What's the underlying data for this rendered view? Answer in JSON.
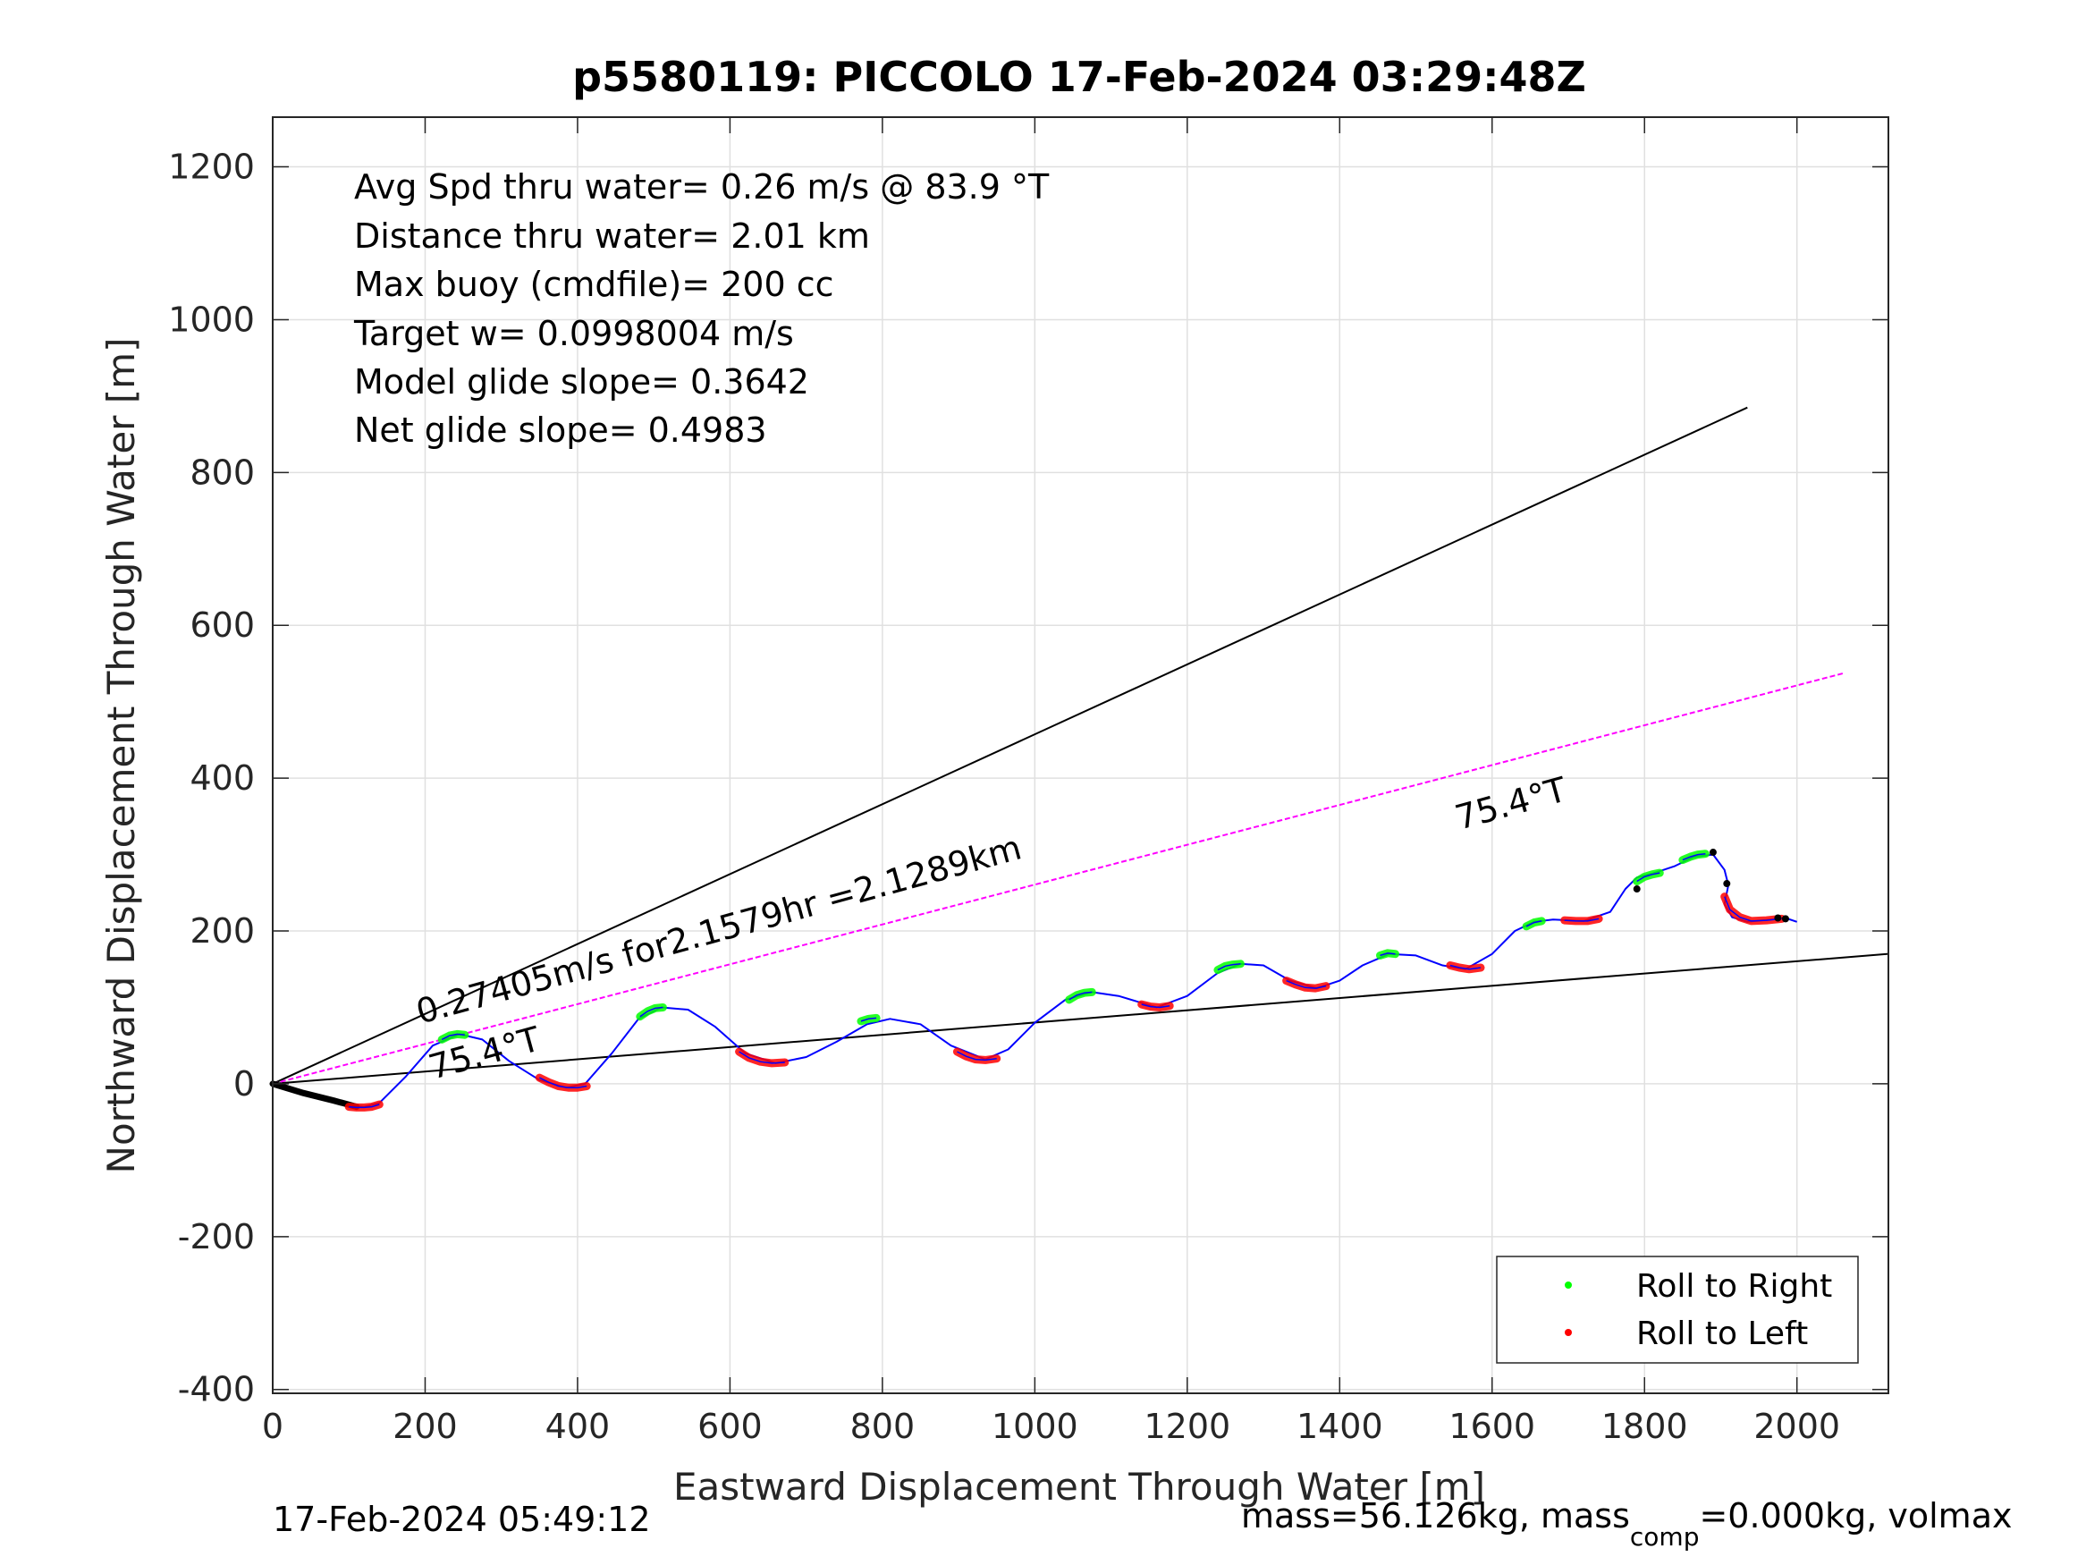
{
  "chart_data": {
    "type": "line",
    "title": "p5580119: PICCOLO 17-Feb-2024 03:29:48Z",
    "xlabel": "Eastward Displacement Through Water [m]",
    "ylabel": "Northward Displacement Through Water [m]",
    "xlim": [
      0,
      2120
    ],
    "ylim": [
      -405,
      1265
    ],
    "xticks": [
      0,
      200,
      400,
      600,
      800,
      1000,
      1200,
      1400,
      1600,
      1800,
      2000
    ],
    "yticks": [
      -400,
      -200,
      0,
      200,
      400,
      600,
      800,
      1000,
      1200
    ],
    "xticklabels": [
      "0",
      "200",
      "400",
      "600",
      "800",
      "1000",
      "1200",
      "1400",
      "1600",
      "1800",
      "2000"
    ],
    "yticklabels": [
      "-400",
      "-200",
      "0",
      "200",
      "400",
      "600",
      "800",
      "1000",
      "1200"
    ],
    "grid": true,
    "legend_position": "bottom-right",
    "info_lines": [
      "Avg Spd thru water=  0.26 m/s @  83.9 °T",
      "Distance thru water=  2.01 km",
      "Max buoy (cmdfile)= 200 cc",
      "Target w= 0.0998004 m/s",
      "Model glide slope= 0.3642",
      "Net glide slope= 0.4983"
    ],
    "annotations": {
      "speed_line": "0.27405m/s for2.1579hr =2.1289km",
      "heading_upper": "75.4°T",
      "heading_lower": "75.4°T"
    },
    "footer_left": "17-Feb-2024 05:49:12",
    "footer_right_prefix": "mass=56.126kg, mass",
    "footer_right_sub": "comp",
    "footer_right_suffix": "=0.000kg, volmax",
    "reference_lines": [
      {
        "color": "#000000",
        "x": [
          0,
          1935
        ],
        "y": [
          0,
          885
        ]
      },
      {
        "color": "#000000",
        "x": [
          0,
          2120
        ],
        "y": [
          0,
          170
        ]
      },
      {
        "color": "#ff00ff",
        "x": [
          0,
          2060
        ],
        "y": [
          0,
          537
        ],
        "dashed": true
      }
    ],
    "track": {
      "color": "#0000ff",
      "x": [
        0,
        50,
        100,
        120,
        140,
        175,
        210,
        245,
        275,
        310,
        350,
        385,
        410,
        445,
        480,
        510,
        545,
        580,
        620,
        660,
        700,
        740,
        780,
        810,
        850,
        890,
        935,
        965,
        1000,
        1040,
        1075,
        1110,
        1160,
        1200,
        1240,
        1270,
        1300,
        1335,
        1370,
        1400,
        1430,
        1465,
        1500,
        1535,
        1565,
        1600,
        1630,
        1655,
        1680,
        1720,
        1755,
        1775,
        1790,
        1810,
        1840,
        1865,
        1890,
        1905,
        1910,
        1905,
        1915,
        1935,
        1965,
        1985,
        2000
      ],
      "y": [
        0,
        -15,
        -28,
        -30,
        -25,
        10,
        50,
        65,
        58,
        30,
        5,
        -5,
        0,
        40,
        85,
        100,
        97,
        75,
        40,
        27,
        35,
        55,
        78,
        85,
        78,
        50,
        32,
        45,
        80,
        110,
        120,
        115,
        100,
        115,
        145,
        157,
        155,
        135,
        125,
        135,
        155,
        170,
        168,
        155,
        150,
        170,
        200,
        212,
        215,
        213,
        225,
        255,
        270,
        275,
        285,
        297,
        300,
        280,
        260,
        235,
        218,
        212,
        215,
        217,
        212
      ]
    },
    "dive_segment": {
      "x": [
        0,
        40,
        80,
        110
      ],
      "y": [
        0,
        -12,
        -22,
        -30
      ]
    },
    "markers": [
      {
        "x": 1790,
        "y": 255
      },
      {
        "x": 1890,
        "y": 303
      },
      {
        "x": 1908,
        "y": 262
      },
      {
        "x": 1975,
        "y": 217
      },
      {
        "x": 1985,
        "y": 216
      }
    ],
    "series": [
      {
        "name": "Roll to Right",
        "color": "#00ff00",
        "segments": [
          {
            "x": [
              222,
              232,
              242,
              252
            ],
            "y": [
              58,
              63,
              65,
              64
            ]
          },
          {
            "x": [
              482,
              492,
              502,
              512
            ],
            "y": [
              88,
              95,
              99,
              100
            ]
          },
          {
            "x": [
              772,
              782,
              792
            ],
            "y": [
              82,
              85,
              86
            ]
          },
          {
            "x": [
              1045,
              1055,
              1065,
              1075
            ],
            "y": [
              110,
              116,
              119,
              120
            ]
          },
          {
            "x": [
              1240,
              1250,
              1260,
              1270
            ],
            "y": [
              149,
              154,
              156,
              157
            ]
          },
          {
            "x": [
              1453,
              1463,
              1473
            ],
            "y": [
              168,
              171,
              170
            ]
          },
          {
            "x": [
              1645,
              1655,
              1665
            ],
            "y": [
              206,
              211,
              213
            ]
          },
          {
            "x": [
              1790,
              1800,
              1810,
              1820
            ],
            "y": [
              265,
              271,
              274,
              276
            ]
          },
          {
            "x": [
              1850,
              1860,
              1870,
              1880
            ],
            "y": [
              293,
              297,
              300,
              301
            ]
          }
        ]
      },
      {
        "name": "Roll to Left",
        "color": "#ff0000",
        "segments": [
          {
            "x": [
              100,
              110,
              120,
              130,
              140
            ],
            "y": [
              -30,
              -31,
              -31,
              -30,
              -27
            ]
          },
          {
            "x": [
              350,
              362,
              375,
              388,
              400,
              412
            ],
            "y": [
              8,
              2,
              -3,
              -5,
              -5,
              -3
            ]
          },
          {
            "x": [
              612,
              625,
              640,
              655,
              672
            ],
            "y": [
              42,
              34,
              29,
              27,
              28
            ]
          },
          {
            "x": [
              898,
              910,
              922,
              935,
              950
            ],
            "y": [
              42,
              36,
              32,
              31,
              33
            ]
          },
          {
            "x": [
              1140,
              1152,
              1164,
              1177
            ],
            "y": [
              104,
              101,
              100,
              102
            ]
          },
          {
            "x": [
              1330,
              1342,
              1355,
              1368,
              1382
            ],
            "y": [
              135,
              130,
              126,
              125,
              128
            ]
          },
          {
            "x": [
              1545,
              1557,
              1570,
              1585
            ],
            "y": [
              155,
              152,
              150,
              152
            ]
          },
          {
            "x": [
              1695,
              1710,
              1725,
              1740
            ],
            "y": [
              214,
              213,
              213,
              216
            ]
          },
          {
            "x": [
              1905,
              1912,
              1925,
              1940,
              1960,
              1980
            ],
            "y": [
              245,
              228,
              218,
              213,
              214,
              216
            ]
          }
        ]
      }
    ]
  }
}
